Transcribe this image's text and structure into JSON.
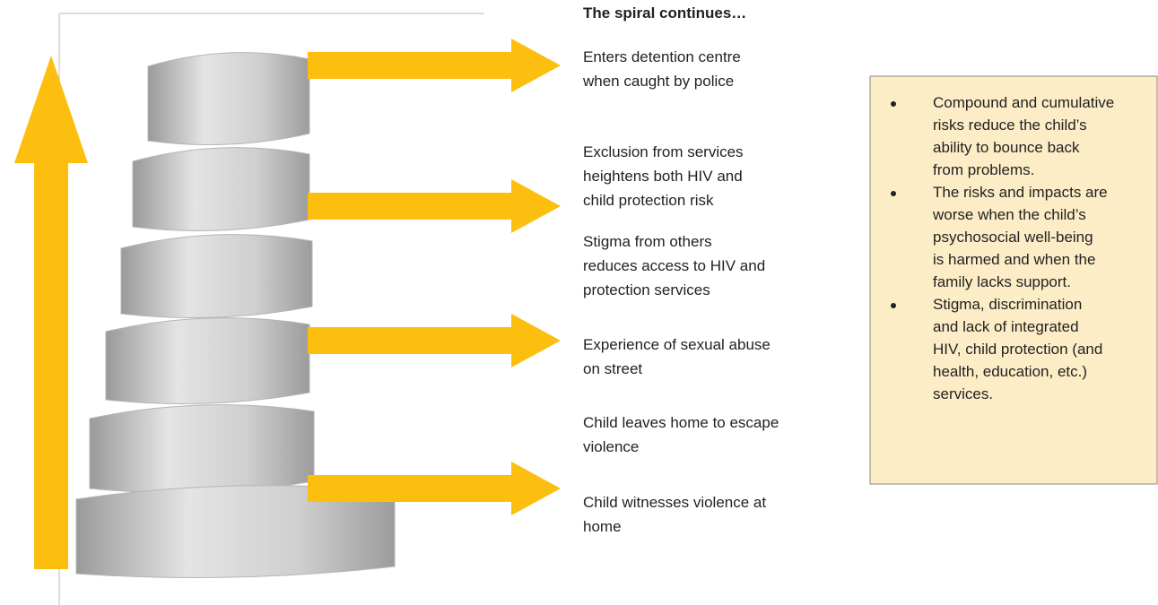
{
  "title": "The spiral continues…",
  "steps": [
    {
      "lines": [
        "Enters detention centre",
        "when caught by police"
      ]
    },
    {
      "lines": [
        "Exclusion from services",
        "heightens both HIV and",
        "child protection risk"
      ]
    },
    {
      "lines": [
        "Stigma from others",
        "reduces access to HIV and",
        "protection services"
      ]
    },
    {
      "lines": [
        "Experience of sexual abuse",
        "on street"
      ]
    },
    {
      "lines": [
        "Child leaves home to escape",
        "violence"
      ]
    },
    {
      "lines": [
        "Child witnesses violence at",
        "home"
      ]
    }
  ],
  "box": {
    "bullets": [
      {
        "lines": [
          "Compound and cumulative",
          "risks reduce the child’s",
          "ability to bounce back",
          "from problems."
        ]
      },
      {
        "lines": [
          "The risks and impacts are",
          "worse when the child’s",
          "psychosocial well-being",
          "is harmed and when the",
          "family lacks support."
        ]
      },
      {
        "lines": [
          "Stigma, discrimination",
          "and lack of integrated",
          "HIV, child protection (and",
          "health, education, etc.)",
          "services."
        ]
      }
    ]
  }
}
